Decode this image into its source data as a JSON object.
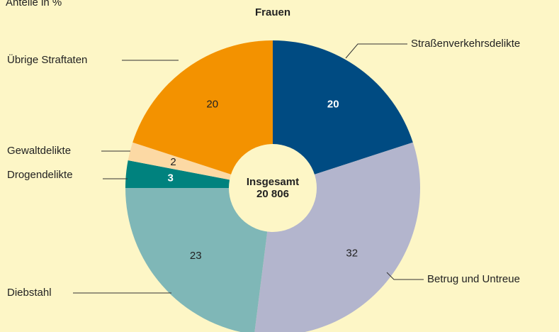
{
  "chart_data": {
    "type": "donut",
    "subtitle": "Anteile in %",
    "title": "Frauen",
    "categories": [
      "Straßenverkehrsdelikte",
      "Betrug und Untreue",
      "Diebstahl",
      "Drogendelikte",
      "Gewaltdelikte",
      "Übrige Straftaten"
    ],
    "values": [
      20,
      32,
      23,
      3,
      2,
      20
    ],
    "colors": [
      "#004b82",
      "#b3b5cd",
      "#7fb7b7",
      "#00827e",
      "#fcd9a4",
      "#f39200"
    ],
    "label_colors": [
      "#ffffff",
      "#222222",
      "#222222",
      "#ffffff",
      "#222222",
      "#222222"
    ],
    "center": {
      "title": "Insgesamt",
      "value": 20806,
      "value_label": "20 806"
    }
  }
}
